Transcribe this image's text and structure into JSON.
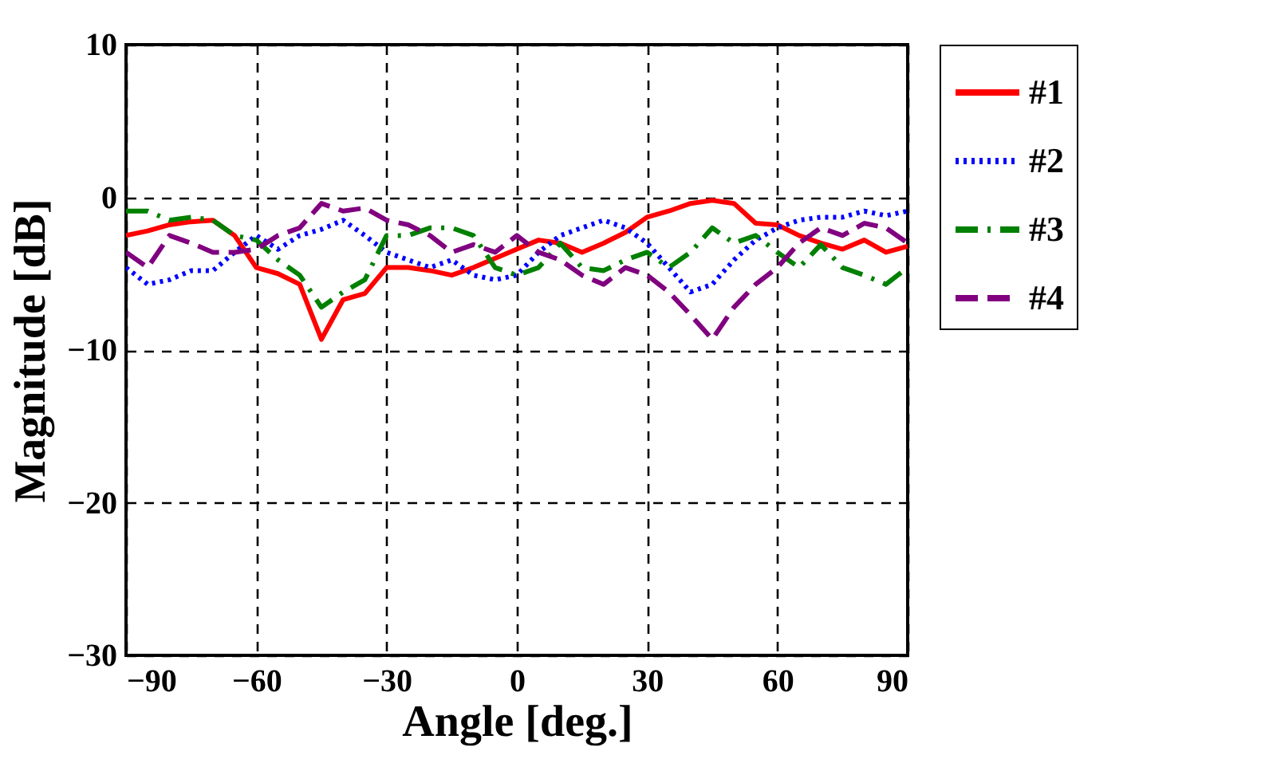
{
  "chart_data": {
    "type": "line",
    "xlabel": "Angle [deg.]",
    "ylabel": "Magnitude [dB]",
    "xlim": [
      -90,
      90
    ],
    "ylim": [
      -30,
      10
    ],
    "xticks": [
      -90,
      -60,
      -30,
      0,
      30,
      60,
      90
    ],
    "yticks": [
      -30,
      -20,
      -10,
      0,
      10
    ],
    "grid": true,
    "legend": "right",
    "x": [
      -90,
      -85,
      -80,
      -75,
      -70,
      -65,
      -60,
      -55,
      -50,
      -45,
      -40,
      -35,
      -30,
      -25,
      -20,
      -15,
      -10,
      -5,
      0,
      5,
      10,
      15,
      20,
      25,
      30,
      35,
      40,
      45,
      50,
      55,
      60,
      65,
      70,
      75,
      80,
      85,
      90
    ],
    "series": [
      {
        "name": "#1",
        "color": "#ff0000",
        "line_style": "solid",
        "values": [
          -2.5,
          -2.2,
          -1.8,
          -1.6,
          -1.5,
          -2.5,
          -4.6,
          -5,
          -5.7,
          -9.3,
          -6.7,
          -6.3,
          -4.6,
          -4.6,
          -4.8,
          -5.1,
          -4.6,
          -4,
          -3.4,
          -2.8,
          -3,
          -3.6,
          -3,
          -2.3,
          -1.3,
          -0.9,
          -0.4,
          -0.2,
          -0.4,
          -1.7,
          -1.8,
          -2.5,
          -3,
          -3.4,
          -2.8,
          -3.6,
          -3.2
        ]
      },
      {
        "name": "#2",
        "color": "#0000ff",
        "line_style": "dotted",
        "values": [
          -4.6,
          -5.7,
          -5.4,
          -4.8,
          -4.8,
          -3.6,
          -2.5,
          -3.4,
          -2.5,
          -2.1,
          -1.5,
          -2.5,
          -3.6,
          -4.1,
          -4.6,
          -4.1,
          -5.1,
          -5.4,
          -5.1,
          -3.6,
          -2.5,
          -2,
          -1.5,
          -2,
          -3,
          -4.6,
          -6.2,
          -5.7,
          -4.1,
          -2.8,
          -2,
          -1.5,
          -1.3,
          -1.3,
          -0.9,
          -1.2,
          -0.9
        ]
      },
      {
        "name": "#3",
        "color": "#008000",
        "line_style": "dashdot",
        "values": [
          -0.9,
          -0.9,
          -1.5,
          -1.3,
          -1.5,
          -2.5,
          -2.8,
          -4.1,
          -5.1,
          -7.2,
          -6.2,
          -5.4,
          -2.5,
          -2.5,
          -2,
          -2,
          -2.5,
          -4.6,
          -5.1,
          -4.6,
          -3,
          -4.6,
          -4.8,
          -4.1,
          -3.6,
          -4.6,
          -3.6,
          -2,
          -3,
          -2.5,
          -3.6,
          -4.6,
          -3.1,
          -4.6,
          -5.1,
          -5.7,
          -4.6
        ]
      },
      {
        "name": "#4",
        "color": "#800080",
        "line_style": "dashed",
        "values": [
          -3.6,
          -4.6,
          -2.5,
          -3,
          -3.6,
          -3.6,
          -3.4,
          -2.5,
          -2,
          -0.4,
          -0.9,
          -0.7,
          -1.5,
          -1.8,
          -2.5,
          -3.6,
          -3.1,
          -3.6,
          -2.5,
          -3.6,
          -4.1,
          -5.1,
          -5.7,
          -4.6,
          -5.1,
          -6.2,
          -7.7,
          -9.3,
          -7.2,
          -5.7,
          -4.6,
          -3,
          -2,
          -2.5,
          -1.7,
          -2,
          -3
        ]
      }
    ]
  }
}
